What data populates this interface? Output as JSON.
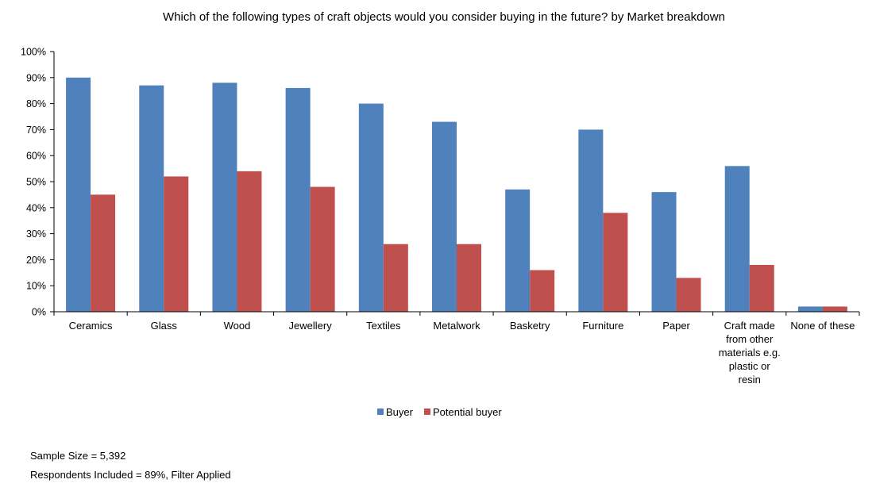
{
  "chart_data": {
    "type": "bar",
    "title": "Which of the following types of craft objects would you consider buying in the future? by Market breakdown",
    "categories": [
      [
        "Ceramics"
      ],
      [
        "Glass"
      ],
      [
        "Wood"
      ],
      [
        "Jewellery"
      ],
      [
        "Textiles"
      ],
      [
        "Metalwork"
      ],
      [
        "Basketry"
      ],
      [
        "Furniture"
      ],
      [
        "Paper"
      ],
      [
        "Craft made",
        "from other",
        "materials e.g.",
        "plastic or",
        "resin"
      ],
      [
        "None of these"
      ]
    ],
    "series": [
      {
        "name": "Buyer",
        "color": "#4F81BD",
        "values": [
          90,
          87,
          88,
          86,
          80,
          73,
          47,
          70,
          46,
          56,
          2
        ]
      },
      {
        "name": "Potential buyer",
        "color": "#C0504D",
        "values": [
          45,
          52,
          54,
          48,
          26,
          26,
          16,
          38,
          13,
          18,
          2
        ]
      }
    ],
    "ylim": [
      0,
      100
    ],
    "yticks": [
      "0%",
      "10%",
      "20%",
      "30%",
      "40%",
      "50%",
      "60%",
      "70%",
      "80%",
      "90%",
      "100%"
    ],
    "legend_position": "bottom",
    "grid": false
  },
  "notes": {
    "sample_size": "Sample Size = 5,392",
    "respondents": "Respondents Included = 89%, Filter Applied"
  }
}
